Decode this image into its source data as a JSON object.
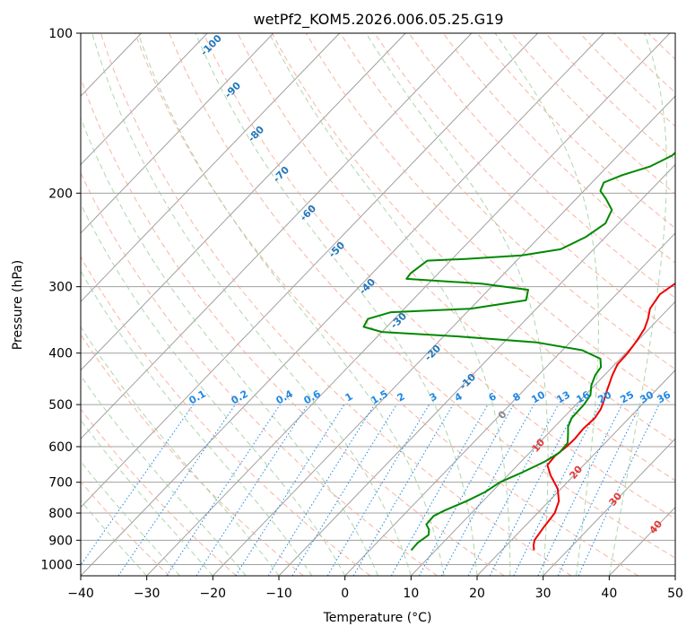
{
  "chart_data": {
    "type": "line",
    "title": "wetPf2_KOM5.2026.006.05.25.G19",
    "xlabel": "Temperature (°C)",
    "ylabel": "Pressure (hPa)",
    "xlim": [
      -40,
      50
    ],
    "ylim": [
      1050,
      100
    ],
    "y_scale": "log",
    "grid": true,
    "x_ticks": [
      -40,
      -30,
      -20,
      -10,
      0,
      10,
      20,
      30,
      40,
      50
    ],
    "x_tick_labels": [
      "−40",
      "−30",
      "−20",
      "−10",
      "0",
      "10",
      "20",
      "30",
      "40",
      "50"
    ],
    "y_ticks": [
      100,
      200,
      300,
      400,
      500,
      600,
      700,
      800,
      900,
      1000
    ],
    "y_tick_labels": [
      "100",
      "200",
      "300",
      "400",
      "500",
      "600",
      "700",
      "800",
      "900",
      "1000"
    ],
    "series": [
      {
        "color": "#ee0000",
        "points": [
          [
            24.9,
            940
          ],
          [
            24.1,
            920
          ],
          [
            23.5,
            900
          ],
          [
            23.0,
            850
          ],
          [
            22.6,
            800
          ],
          [
            21.5,
            760
          ],
          [
            19.5,
            720
          ],
          [
            16.5,
            680
          ],
          [
            14.5,
            650
          ],
          [
            14.3,
            625
          ],
          [
            14.7,
            600
          ],
          [
            14.8,
            580
          ],
          [
            14.6,
            555
          ],
          [
            14.8,
            530
          ],
          [
            14.4,
            510
          ],
          [
            13.8,
            495
          ],
          [
            12.6,
            470
          ],
          [
            11.2,
            440
          ],
          [
            10.4,
            420
          ],
          [
            10.3,
            400
          ],
          [
            9.9,
            380
          ],
          [
            9.3,
            360
          ],
          [
            8.4,
            345
          ],
          [
            7.2,
            330
          ],
          [
            6.6,
            310
          ],
          [
            7.4,
            295
          ],
          [
            7.7,
            285
          ],
          [
            7.3,
            270
          ],
          [
            6.2,
            255
          ],
          [
            4.8,
            240
          ],
          [
            4.2,
            225
          ],
          [
            4.4,
            215
          ],
          [
            5.6,
            205
          ],
          [
            6.5,
            192
          ],
          [
            6.8,
            180
          ],
          [
            7.0,
            170
          ],
          [
            6.8,
            160
          ],
          [
            6.0,
            145
          ],
          [
            5.4,
            135
          ],
          [
            4.8,
            125
          ],
          [
            4.6,
            120
          ],
          [
            4.7,
            110
          ],
          [
            4.8,
            100
          ]
        ]
      },
      {
        "color": "#008800",
        "points": [
          [
            6.3,
            940
          ],
          [
            6.2,
            910
          ],
          [
            6.7,
            880
          ],
          [
            6.0,
            860
          ],
          [
            4.8,
            840
          ],
          [
            4.7,
            810
          ],
          [
            5.6,
            790
          ],
          [
            7.5,
            760
          ],
          [
            9.0,
            730
          ],
          [
            9.8,
            700
          ],
          [
            11.8,
            670
          ],
          [
            13.6,
            640
          ],
          [
            14.5,
            615
          ],
          [
            14.3,
            590
          ],
          [
            13.2,
            570
          ],
          [
            12.0,
            550
          ],
          [
            11.3,
            530
          ],
          [
            11.2,
            500
          ],
          [
            10.8,
            480
          ],
          [
            9.5,
            460
          ],
          [
            8.6,
            440
          ],
          [
            8.3,
            425
          ],
          [
            7.0,
            410
          ],
          [
            3.0,
            395
          ],
          [
            -5.0,
            382
          ],
          [
            -18.0,
            372
          ],
          [
            -30.0,
            365
          ],
          [
            -33.5,
            357
          ],
          [
            -34.0,
            345
          ],
          [
            -31.5,
            335
          ],
          [
            -20.0,
            330
          ],
          [
            -12.8,
            318
          ],
          [
            -14.0,
            304
          ],
          [
            -22.0,
            296
          ],
          [
            -34.0,
            290
          ],
          [
            -34.2,
            283
          ],
          [
            -33.5,
            268
          ],
          [
            -28.0,
            266
          ],
          [
            -20.0,
            262
          ],
          [
            -15.0,
            255
          ],
          [
            -13.0,
            242
          ],
          [
            -12.0,
            228
          ],
          [
            -13.0,
            215
          ],
          [
            -15.5,
            205
          ],
          [
            -17.5,
            198
          ],
          [
            -18.2,
            191
          ],
          [
            -16.5,
            185
          ],
          [
            -13.5,
            178
          ],
          [
            -11.8,
            170
          ],
          [
            -11.3,
            158
          ],
          [
            -11.2,
            150
          ],
          [
            -9.2,
            142
          ],
          [
            -6.0,
            132
          ],
          [
            -4.5,
            125
          ],
          [
            -2.5,
            115
          ],
          [
            -0.5,
            106
          ],
          [
            0.8,
            100
          ]
        ]
      }
    ],
    "dry_adiabat_labels": [
      "-100",
      "-90",
      "-80",
      "-70",
      "-60",
      "-50",
      "-40",
      "-30",
      "-20",
      "-10"
    ],
    "mixing_ratio_labels": [
      "0.1",
      "0.2",
      "0.4",
      "0.6",
      "1",
      "1.5",
      "2",
      "3",
      "4",
      "6",
      "8",
      "10",
      "13",
      "16",
      "20",
      "25",
      "30",
      "36"
    ],
    "moist_adiabat_labels": [
      "0",
      "10",
      "20",
      "30",
      "40"
    ],
    "colors": {
      "dry_adiabat": "#f6a890",
      "moist_adiabat": "#98cc98",
      "mixing_ratio": "#1e88e5",
      "isotherm": "#a0a0a0",
      "dry_label": "#2277bb",
      "moist_label": "#e53935",
      "zero_label": "#888888"
    }
  }
}
